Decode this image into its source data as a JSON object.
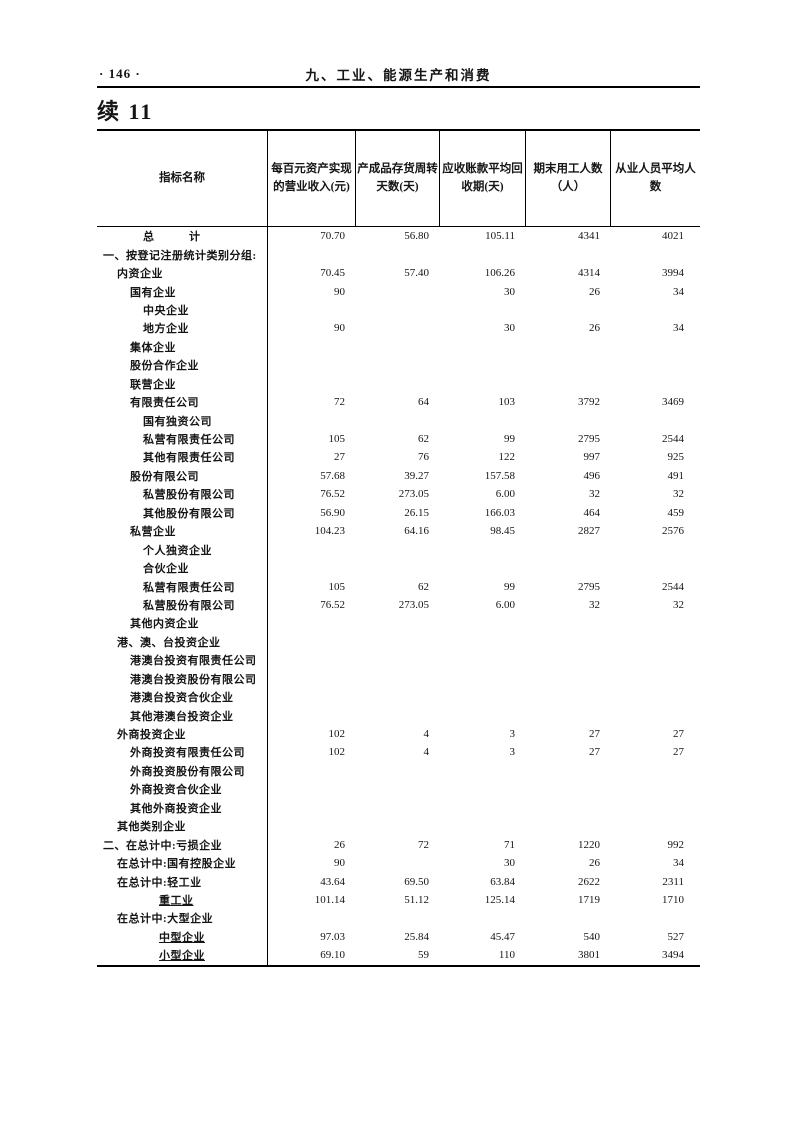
{
  "page": {
    "page_number": "· 146 ·",
    "chapter_title": "九、工业、能源生产和消费",
    "table_title": "续 11"
  },
  "table": {
    "columns": [
      "指标名称",
      "每百元资产实现\n的营业收入(元)",
      "产成品存货周转\n天数(天)",
      "应收账款平均回\n收期(天)",
      "期末用工人数\n（人）",
      "从业人员平均人\n数"
    ],
    "rows": [
      {
        "label": "总　　　计",
        "indent": 3,
        "values": [
          "70.70",
          "56.80",
          "105.11",
          "4341",
          "4021"
        ]
      },
      {
        "label": "一、按登记注册统计类别分组:",
        "indent": 0,
        "values": [
          "",
          "",
          "",
          "",
          ""
        ]
      },
      {
        "label": "内资企业",
        "indent": 1,
        "values": [
          "70.45",
          "57.40",
          "106.26",
          "4314",
          "3994"
        ]
      },
      {
        "label": "国有企业",
        "indent": 2,
        "values": [
          "90",
          "",
          "30",
          "26",
          "34"
        ]
      },
      {
        "label": "中央企业",
        "indent": 3,
        "values": [
          "",
          "",
          "",
          "",
          ""
        ]
      },
      {
        "label": "地方企业",
        "indent": 3,
        "values": [
          "90",
          "",
          "30",
          "26",
          "34"
        ]
      },
      {
        "label": "集体企业",
        "indent": 2,
        "values": [
          "",
          "",
          "",
          "",
          ""
        ]
      },
      {
        "label": "股份合作企业",
        "indent": 2,
        "values": [
          "",
          "",
          "",
          "",
          ""
        ]
      },
      {
        "label": "联营企业",
        "indent": 2,
        "values": [
          "",
          "",
          "",
          "",
          ""
        ]
      },
      {
        "label": "有限责任公司",
        "indent": 2,
        "values": [
          "72",
          "64",
          "103",
          "3792",
          "3469"
        ]
      },
      {
        "label": "国有独资公司",
        "indent": 3,
        "values": [
          "",
          "",
          "",
          "",
          ""
        ]
      },
      {
        "label": "私营有限责任公司",
        "indent": 3,
        "values": [
          "105",
          "62",
          "99",
          "2795",
          "2544"
        ]
      },
      {
        "label": "其他有限责任公司",
        "indent": 3,
        "values": [
          "27",
          "76",
          "122",
          "997",
          "925"
        ]
      },
      {
        "label": "股份有限公司",
        "indent": 2,
        "values": [
          "57.68",
          "39.27",
          "157.58",
          "496",
          "491"
        ]
      },
      {
        "label": "私营股份有限公司",
        "indent": 3,
        "values": [
          "76.52",
          "273.05",
          "6.00",
          "32",
          "32"
        ]
      },
      {
        "label": "其他股份有限公司",
        "indent": 3,
        "values": [
          "56.90",
          "26.15",
          "166.03",
          "464",
          "459"
        ]
      },
      {
        "label": "私营企业",
        "indent": 2,
        "values": [
          "104.23",
          "64.16",
          "98.45",
          "2827",
          "2576"
        ]
      },
      {
        "label": "个人独资企业",
        "indent": 3,
        "values": [
          "",
          "",
          "",
          "",
          ""
        ]
      },
      {
        "label": "合伙企业",
        "indent": 3,
        "values": [
          "",
          "",
          "",
          "",
          ""
        ]
      },
      {
        "label": "私营有限责任公司",
        "indent": 3,
        "values": [
          "105",
          "62",
          "99",
          "2795",
          "2544"
        ]
      },
      {
        "label": "私营股份有限公司",
        "indent": 3,
        "values": [
          "76.52",
          "273.05",
          "6.00",
          "32",
          "32"
        ]
      },
      {
        "label": "其他内资企业",
        "indent": 2,
        "values": [
          "",
          "",
          "",
          "",
          ""
        ]
      },
      {
        "label": "港、澳、台投资企业",
        "indent": 1,
        "values": [
          "",
          "",
          "",
          "",
          ""
        ]
      },
      {
        "label": "港澳台投资有限责任公司",
        "indent": 2,
        "values": [
          "",
          "",
          "",
          "",
          ""
        ]
      },
      {
        "label": "港澳台投资股份有限公司",
        "indent": 2,
        "values": [
          "",
          "",
          "",
          "",
          ""
        ]
      },
      {
        "label": "港澳台投资合伙企业",
        "indent": 2,
        "values": [
          "",
          "",
          "",
          "",
          ""
        ]
      },
      {
        "label": "其他港澳台投资企业",
        "indent": 2,
        "values": [
          "",
          "",
          "",
          "",
          ""
        ]
      },
      {
        "label": "外商投资企业",
        "indent": 1,
        "values": [
          "102",
          "4",
          "3",
          "27",
          "27"
        ]
      },
      {
        "label": "外商投资有限责任公司",
        "indent": 2,
        "values": [
          "102",
          "4",
          "3",
          "27",
          "27"
        ]
      },
      {
        "label": "外商投资股份有限公司",
        "indent": 2,
        "values": [
          "",
          "",
          "",
          "",
          ""
        ]
      },
      {
        "label": "外商投资合伙企业",
        "indent": 2,
        "values": [
          "",
          "",
          "",
          "",
          ""
        ]
      },
      {
        "label": "其他外商投资企业",
        "indent": 2,
        "values": [
          "",
          "",
          "",
          "",
          ""
        ]
      },
      {
        "label": "其他类别企业",
        "indent": 1,
        "values": [
          "",
          "",
          "",
          "",
          ""
        ]
      },
      {
        "label": "二、在总计中:亏损企业",
        "indent": 0,
        "values": [
          "26",
          "72",
          "71",
          "1220",
          "992"
        ]
      },
      {
        "label": "在总计中:国有控股企业",
        "indent": 1,
        "values": [
          "90",
          "",
          "30",
          "26",
          "34"
        ]
      },
      {
        "label": "在总计中:轻工业",
        "indent": 1,
        "values": [
          "43.64",
          "69.50",
          "63.84",
          "2622",
          "2311"
        ]
      },
      {
        "label": "重工业",
        "indent": 4,
        "underline": true,
        "values": [
          "101.14",
          "51.12",
          "125.14",
          "1719",
          "1710"
        ]
      },
      {
        "label": "在总计中:大型企业",
        "indent": 1,
        "values": [
          "",
          "",
          "",
          "",
          ""
        ]
      },
      {
        "label": "中型企业",
        "indent": 4,
        "underline": true,
        "values": [
          "97.03",
          "25.84",
          "45.47",
          "540",
          "527"
        ]
      },
      {
        "label": "小型企业",
        "indent": 4,
        "underline": true,
        "values": [
          "69.10",
          "59",
          "110",
          "3801",
          "3494"
        ]
      }
    ]
  }
}
